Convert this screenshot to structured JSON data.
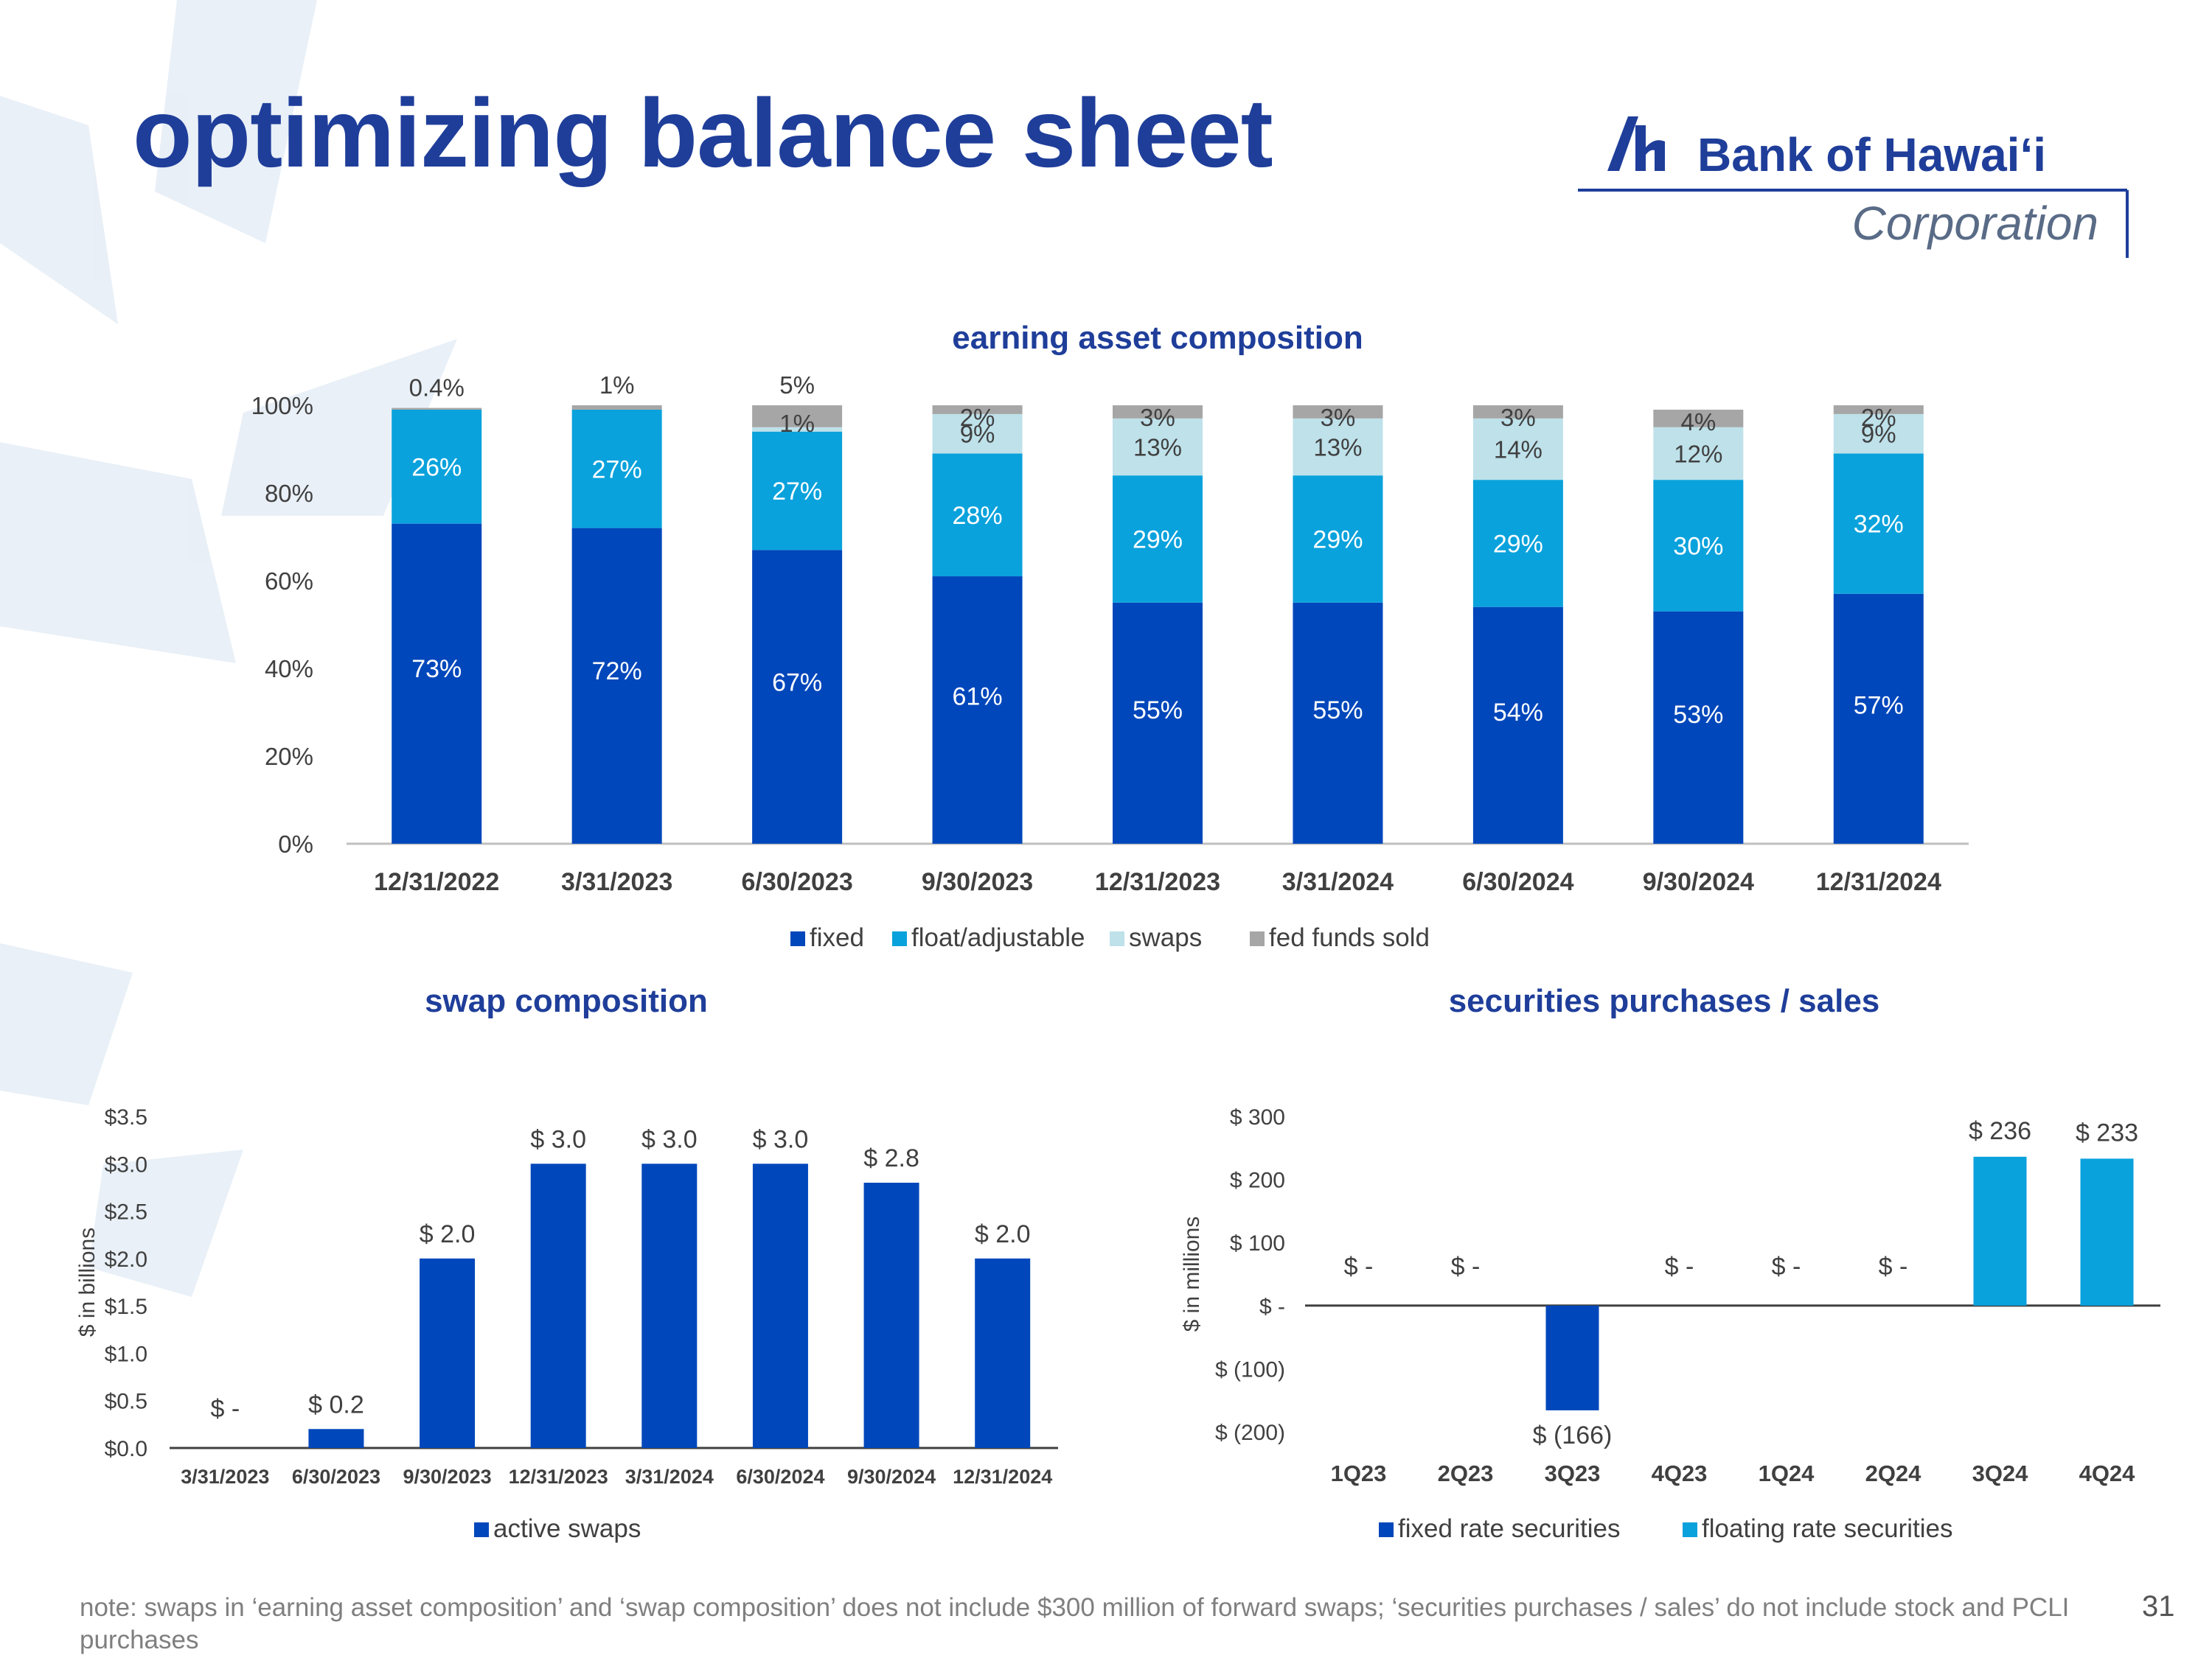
{
  "page": {
    "title": "optimizing balance sheet",
    "logo_text_main": "Bank of Hawaiʻi",
    "logo_text_sub": "Corporation",
    "footnote": "note: swaps in ‘earning asset composition’ and ‘swap composition’ does not include $300 million of forward swaps; ‘securities purchases / sales’ do not include stock and PCLI purchases",
    "page_number": "31",
    "colors": {
      "title": "#1f3e9a",
      "fixed": "#0047BB",
      "float": "#0AA2DC",
      "swaps": "#BEE1EA",
      "fed_funds": "#A6A6A6",
      "watermark": "#e6eef6"
    }
  },
  "chart_data": [
    {
      "type": "bar",
      "stacked": true,
      "title": "earning asset composition",
      "categories": [
        "12/31/2022",
        "3/31/2023",
        "6/30/2023",
        "9/30/2023",
        "12/31/2023",
        "3/31/2024",
        "6/30/2024",
        "9/30/2024",
        "12/31/2024"
      ],
      "series": [
        {
          "name": "fixed",
          "color": "#0047BB",
          "values": [
            73,
            72,
            67,
            61,
            55,
            55,
            54,
            53,
            57
          ],
          "labels": [
            "73%",
            "72%",
            "67%",
            "61%",
            "55%",
            "55%",
            "54%",
            "53%",
            "57%"
          ]
        },
        {
          "name": "float/adjustable",
          "color": "#0AA2DC",
          "values": [
            26,
            27,
            27,
            28,
            29,
            29,
            29,
            30,
            32
          ],
          "labels": [
            "26%",
            "27%",
            "27%",
            "28%",
            "29%",
            "29%",
            "29%",
            "30%",
            "32%"
          ]
        },
        {
          "name": "swaps",
          "color": "#BEE1EA",
          "values": [
            0,
            0,
            1,
            9,
            13,
            13,
            14,
            12,
            9
          ],
          "labels": [
            "",
            "",
            "1%",
            "9%",
            "13%",
            "13%",
            "14%",
            "12%",
            "9%"
          ]
        },
        {
          "name": "fed funds sold",
          "color": "#A6A6A6",
          "values": [
            0.4,
            1,
            5,
            2,
            3,
            3,
            3,
            4,
            2
          ],
          "labels": [
            "0.4%",
            "1%",
            "5%",
            "2%",
            "3%",
            "3%",
            "3%",
            "4%",
            "2%"
          ]
        }
      ],
      "yticks": [
        "0%",
        "20%",
        "40%",
        "60%",
        "80%",
        "100%"
      ],
      "ylim": [
        0,
        100
      ],
      "legend": "bottom"
    },
    {
      "type": "bar",
      "title": "swap composition",
      "ylabel": "$ in billions",
      "categories": [
        "3/31/2023",
        "6/30/2023",
        "9/30/2023",
        "12/31/2023",
        "3/31/2024",
        "6/30/2024",
        "9/30/2024",
        "12/31/2024"
      ],
      "series": [
        {
          "name": "active swaps",
          "color": "#0047BB",
          "values": [
            0,
            0.2,
            2.0,
            3.0,
            3.0,
            3.0,
            2.8,
            2.0
          ],
          "labels": [
            "$ -",
            "$ 0.2",
            "$ 2.0",
            "$ 3.0",
            "$ 3.0",
            "$ 3.0",
            "$ 2.8",
            "$ 2.0"
          ]
        }
      ],
      "yticks": [
        "$0.0",
        "$0.5",
        "$1.0",
        "$1.5",
        "$2.0",
        "$2.5",
        "$3.0",
        "$3.5"
      ],
      "ylim": [
        0,
        3.5
      ],
      "legend": "bottom"
    },
    {
      "type": "bar",
      "title": "securities purchases / sales",
      "ylabel": "$ in millions",
      "categories": [
        "1Q23",
        "2Q23",
        "3Q23",
        "4Q23",
        "1Q24",
        "2Q24",
        "3Q24",
        "4Q24"
      ],
      "series": [
        {
          "name": "fixed rate securities",
          "color": "#0047BB",
          "values": [
            0,
            0,
            -166,
            0,
            0,
            0,
            0,
            0
          ]
        },
        {
          "name": "floating rate securities",
          "color": "#0AA2DC",
          "values": [
            0,
            0,
            0,
            0,
            0,
            0,
            236,
            233
          ]
        }
      ],
      "value_labels": [
        "$ -",
        "$ -",
        "$ (166)",
        "$ -",
        "$ -",
        "$ -",
        "$ 236",
        "$ 233"
      ],
      "yticks": [
        "$ (200)",
        "$ (100)",
        "$ -",
        "$ 100",
        "$ 200",
        "$ 300"
      ],
      "ylim": [
        -200,
        300
      ],
      "legend": "bottom"
    }
  ]
}
